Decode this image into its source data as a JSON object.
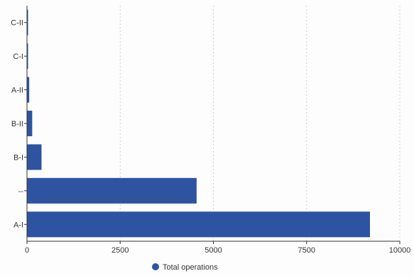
{
  "chart_data": {
    "type": "bar",
    "orientation": "horizontal",
    "categories": [
      "C-II",
      "C-I",
      "A-II",
      "B-II",
      "B-I",
      "--",
      "A-I"
    ],
    "series": [
      {
        "name": "Total operations",
        "values": [
          10,
          15,
          60,
          140,
          390,
          4550,
          9200
        ]
      }
    ],
    "title": "",
    "xlabel": "",
    "ylabel": "",
    "xlim": [
      0,
      10000
    ],
    "x_ticks": [
      0,
      2500,
      5000,
      7500,
      10000
    ],
    "x_tick_labels": [
      "0",
      "2500",
      "5000",
      "7500",
      "10000"
    ],
    "grid": "vertical dashed",
    "legend": "bottom-center",
    "colors": {
      "bar": "#2e54a1",
      "grid": "#cfcfcf",
      "axis": "#333333"
    }
  }
}
